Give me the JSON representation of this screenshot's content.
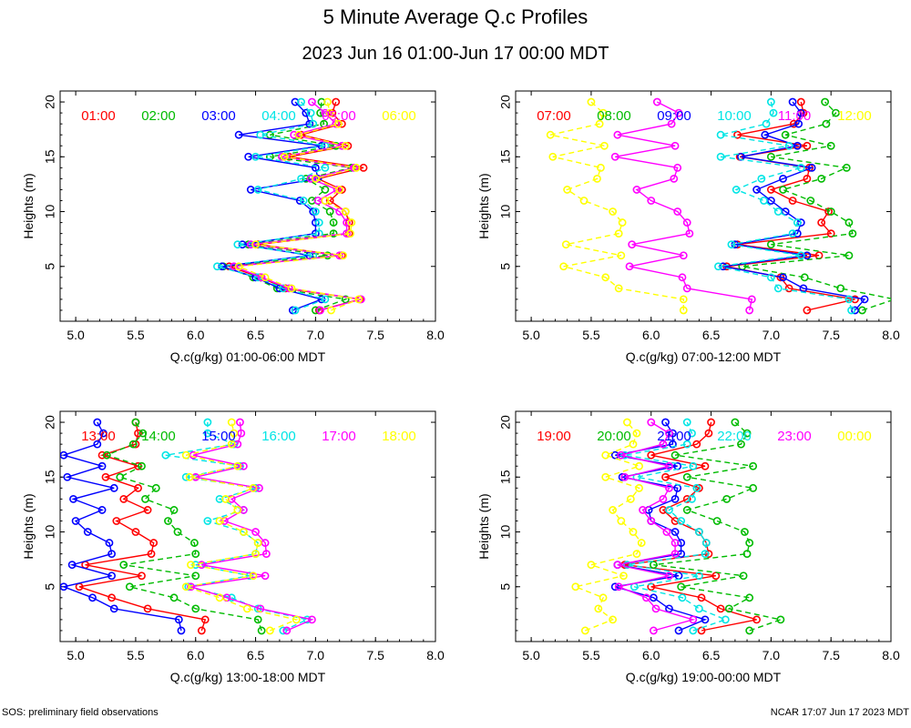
{
  "title": "5 Minute Average Q.c Profiles",
  "subtitle": "2023 Jun 16 01:00-Jun 17 00:00 MDT",
  "footer_left": "SOS: preliminary field observations",
  "footer_right": "NCAR 17:07 Jun 17 2023 MDT",
  "colors": [
    "#ff0000",
    "#00bb00",
    "#0000ff",
    "#00e5e5",
    "#ff00ff",
    "#ffff00"
  ],
  "chart_data": [
    {
      "type": "line",
      "xlabel": "Q.c(g/kg) 01:00-06:00 MDT",
      "ylabel": "Heights (m)",
      "xlim": [
        4.87,
        8.0
      ],
      "ylim": [
        0,
        21
      ],
      "xticks": [
        "5.0",
        "5.5",
        "6.0",
        "6.5",
        "7.0",
        "7.5",
        "8.0"
      ],
      "yticks": [
        "5",
        "10",
        "15",
        "20"
      ],
      "heights": [
        1,
        2,
        3,
        4,
        5,
        6,
        7,
        8,
        9,
        10,
        11,
        12,
        13,
        14,
        15,
        16,
        17,
        18,
        19,
        20
      ],
      "series": [
        {
          "name": "01:00",
          "values": [
            7.03,
            7.37,
            6.75,
            6.54,
            6.28,
            7.22,
            6.52,
            7.28,
            7.28,
            7.25,
            7.12,
            7.22,
            7.02,
            7.4,
            6.78,
            7.27,
            6.88,
            7.22,
            7.14,
            7.17
          ]
        },
        {
          "name": "02:00",
          "values": [
            7.0,
            7.25,
            6.68,
            6.48,
            6.23,
            7.1,
            6.44,
            7.15,
            7.15,
            7.12,
            6.97,
            7.08,
            6.92,
            7.3,
            6.62,
            7.17,
            6.62,
            7.07,
            7.04,
            7.05
          ]
        },
        {
          "name": "03:00",
          "values": [
            6.81,
            7.05,
            6.7,
            6.5,
            6.22,
            6.95,
            6.39,
            7.0,
            7.0,
            6.98,
            6.87,
            6.46,
            7.02,
            7.0,
            6.44,
            7.05,
            6.36,
            6.95,
            6.92,
            6.83
          ]
        },
        {
          "name": "04:00",
          "values": [
            6.83,
            7.08,
            6.73,
            6.52,
            6.18,
            6.98,
            6.35,
            7.03,
            7.03,
            7.0,
            6.9,
            6.52,
            6.88,
            7.08,
            6.5,
            7.08,
            6.54,
            6.98,
            6.96,
            6.88
          ]
        },
        {
          "name": "05:00",
          "values": [
            7.04,
            7.38,
            6.78,
            6.55,
            6.32,
            7.2,
            6.46,
            7.26,
            7.26,
            7.2,
            7.02,
            7.18,
            6.96,
            7.32,
            6.72,
            7.22,
            6.82,
            7.17,
            7.08,
            6.97
          ]
        },
        {
          "name": "06:00",
          "values": [
            7.13,
            7.36,
            6.8,
            6.58,
            6.36,
            7.23,
            6.5,
            7.29,
            7.3,
            7.25,
            7.08,
            7.2,
            7.0,
            7.34,
            6.74,
            7.25,
            6.86,
            7.19,
            7.12,
            7.1
          ]
        }
      ]
    },
    {
      "type": "line",
      "xlabel": "Q.c(g/kg) 07:00-12:00 MDT",
      "ylabel": "Heights (m)",
      "xlim": [
        4.87,
        8.0
      ],
      "ylim": [
        0,
        21
      ],
      "xticks": [
        "5.0",
        "5.5",
        "6.0",
        "6.5",
        "7.0",
        "7.5",
        "8.0"
      ],
      "yticks": [
        "5",
        "10",
        "15",
        "20"
      ],
      "heights": [
        1,
        2,
        3,
        4,
        5,
        6,
        7,
        8,
        9,
        10,
        11,
        12,
        13,
        14,
        15,
        16,
        17,
        18,
        19,
        20
      ],
      "series": [
        {
          "name": "07:00",
          "values": [
            7.3,
            7.7,
            7.15,
            7.08,
            6.63,
            7.4,
            6.72,
            7.5,
            7.42,
            7.48,
            7.18,
            7.0,
            7.3,
            7.32,
            6.74,
            7.3,
            6.72,
            7.19,
            7.27,
            7.25
          ]
        },
        {
          "name": "08:00",
          "values": [
            7.76,
            8.03,
            7.58,
            7.28,
            6.76,
            7.65,
            7.0,
            7.68,
            7.65,
            7.5,
            7.33,
            7.1,
            7.42,
            7.63,
            7.0,
            7.5,
            7.12,
            7.46,
            7.54,
            7.45
          ]
        },
        {
          "name": "09:00",
          "values": [
            7.7,
            7.78,
            7.27,
            7.1,
            6.6,
            7.3,
            6.7,
            7.22,
            7.25,
            7.12,
            7.0,
            6.88,
            7.1,
            7.34,
            6.75,
            7.22,
            6.95,
            7.23,
            7.25,
            7.18
          ]
        },
        {
          "name": "10:00",
          "values": [
            7.67,
            7.65,
            7.06,
            7.0,
            6.56,
            7.25,
            6.67,
            7.18,
            7.22,
            7.06,
            6.94,
            6.71,
            6.92,
            7.25,
            6.58,
            7.15,
            6.58,
            6.96,
            7.02,
            7.0
          ]
        },
        {
          "name": "11:00",
          "values": [
            6.82,
            6.84,
            6.3,
            6.26,
            5.82,
            6.27,
            5.84,
            6.32,
            6.3,
            6.22,
            6.0,
            5.88,
            6.19,
            6.22,
            5.7,
            6.2,
            5.72,
            6.17,
            6.23,
            6.05
          ]
        },
        {
          "name": "12:00",
          "values": [
            6.27,
            6.27,
            5.73,
            5.62,
            5.27,
            5.75,
            5.29,
            5.73,
            5.76,
            5.68,
            5.44,
            5.3,
            5.55,
            5.58,
            5.18,
            5.61,
            5.16,
            5.57,
            5.6,
            5.5
          ]
        }
      ]
    },
    {
      "type": "line",
      "xlabel": "Q.c(g/kg) 13:00-18:00 MDT",
      "ylabel": "Heights (m)",
      "xlim": [
        4.87,
        8.0
      ],
      "ylim": [
        0,
        21
      ],
      "xticks": [
        "5.0",
        "5.5",
        "6.0",
        "6.5",
        "7.0",
        "7.5",
        "8.0"
      ],
      "yticks": [
        "5",
        "10",
        "15",
        "20"
      ],
      "heights": [
        1,
        2,
        3,
        4,
        5,
        6,
        7,
        8,
        9,
        10,
        11,
        12,
        13,
        14,
        15,
        16,
        17,
        18,
        19,
        20
      ],
      "series": [
        {
          "name": "13:00",
          "values": [
            6.05,
            6.08,
            5.6,
            5.3,
            5.03,
            5.55,
            5.08,
            5.63,
            5.65,
            5.5,
            5.34,
            5.6,
            5.4,
            5.52,
            5.25,
            5.52,
            5.22,
            5.5,
            5.52,
            5.5
          ]
        },
        {
          "name": "14:00",
          "values": [
            6.55,
            6.52,
            6.0,
            5.82,
            5.45,
            6.0,
            5.4,
            6.0,
            5.99,
            5.85,
            5.77,
            5.82,
            5.58,
            5.67,
            5.37,
            5.55,
            5.26,
            5.48,
            5.56,
            5.5
          ]
        },
        {
          "name": "15:00",
          "values": [
            5.88,
            5.86,
            5.32,
            5.14,
            4.9,
            5.3,
            4.97,
            5.3,
            5.28,
            5.1,
            5.0,
            5.22,
            4.98,
            5.32,
            4.93,
            5.22,
            4.9,
            5.18,
            5.23,
            5.18
          ]
        },
        {
          "name": "16:00",
          "values": [
            6.73,
            6.93,
            6.52,
            6.3,
            5.94,
            6.45,
            6.0,
            6.5,
            6.52,
            6.4,
            6.1,
            6.4,
            6.2,
            6.5,
            5.92,
            6.37,
            5.75,
            6.32,
            6.1,
            6.1
          ]
        },
        {
          "name": "17:00",
          "values": [
            6.76,
            6.97,
            6.54,
            6.26,
            5.96,
            6.58,
            6.05,
            6.59,
            6.58,
            6.5,
            6.24,
            6.4,
            6.3,
            6.53,
            6.0,
            6.4,
            5.98,
            6.35,
            6.38,
            6.37
          ]
        },
        {
          "name": "18:00",
          "values": [
            6.62,
            6.84,
            6.43,
            6.2,
            5.92,
            6.48,
            5.96,
            6.5,
            6.52,
            6.4,
            6.2,
            6.35,
            6.25,
            6.48,
            5.95,
            6.35,
            5.92,
            6.3,
            6.32,
            6.3
          ]
        }
      ]
    },
    {
      "type": "line",
      "xlabel": "Q.c(g/kg) 19:00-00:00 MDT",
      "ylabel": "Heights (m)",
      "xlim": [
        4.87,
        8.0
      ],
      "ylim": [
        0,
        21
      ],
      "xticks": [
        "5.0",
        "5.5",
        "6.0",
        "6.5",
        "7.0",
        "7.5",
        "8.0"
      ],
      "yticks": [
        "5",
        "10",
        "15",
        "20"
      ],
      "heights": [
        1,
        2,
        3,
        4,
        5,
        6,
        7,
        8,
        9,
        10,
        11,
        12,
        13,
        14,
        15,
        16,
        17,
        18,
        19,
        20
      ],
      "series": [
        {
          "name": "19:00",
          "values": [
            6.42,
            6.88,
            6.58,
            6.42,
            6.0,
            6.54,
            5.78,
            6.48,
            6.46,
            6.4,
            6.2,
            6.1,
            6.3,
            6.4,
            6.12,
            6.45,
            6.0,
            6.38,
            6.48,
            6.5
          ]
        },
        {
          "name": "20:00",
          "values": [
            6.82,
            7.08,
            6.65,
            6.82,
            6.25,
            6.77,
            6.02,
            6.8,
            6.82,
            6.78,
            6.55,
            6.3,
            6.63,
            6.85,
            6.3,
            6.85,
            6.2,
            6.75,
            6.8,
            6.7
          ]
        },
        {
          "name": "21:00",
          "values": [
            6.23,
            6.45,
            6.15,
            6.02,
            5.7,
            6.23,
            5.72,
            6.25,
            6.25,
            6.2,
            6.0,
            5.98,
            6.2,
            6.22,
            5.76,
            6.22,
            5.7,
            6.18,
            6.18,
            6.12
          ]
        },
        {
          "name": "22:00",
          "values": [
            6.35,
            6.62,
            6.4,
            6.26,
            5.86,
            6.4,
            5.8,
            6.45,
            6.46,
            6.4,
            6.25,
            6.15,
            6.34,
            6.38,
            5.88,
            6.35,
            5.78,
            6.3,
            6.34,
            6.3
          ]
        },
        {
          "name": "23:00",
          "values": [
            6.02,
            6.35,
            6.04,
            5.96,
            5.73,
            6.15,
            5.72,
            6.2,
            6.2,
            6.13,
            6.0,
            5.93,
            6.1,
            6.15,
            5.78,
            6.15,
            5.75,
            6.1,
            6.15,
            6.0
          ]
        },
        {
          "name": "00:00",
          "values": [
            5.45,
            5.68,
            5.56,
            5.6,
            5.37,
            5.77,
            5.5,
            5.88,
            5.92,
            5.85,
            5.75,
            5.68,
            5.83,
            5.9,
            5.62,
            5.9,
            5.62,
            5.85,
            5.88,
            5.8
          ]
        }
      ]
    }
  ]
}
